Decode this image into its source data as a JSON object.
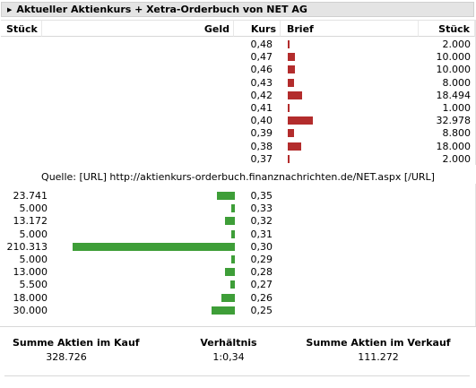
{
  "header": {
    "title": "Aktueller Aktienkurs + Xetra-Orderbuch von NET AG",
    "arrow": "▶"
  },
  "columns": {
    "stueck_left": "Stück",
    "geld": "Geld",
    "kurs": "Kurs",
    "brief": "Brief",
    "stueck_right": "Stück"
  },
  "sell_orders": [
    {
      "kurs": "0,48",
      "stueck": "2.000",
      "value": 2000
    },
    {
      "kurs": "0,47",
      "stueck": "10.000",
      "value": 10000
    },
    {
      "kurs": "0,46",
      "stueck": "10.000",
      "value": 10000
    },
    {
      "kurs": "0,43",
      "stueck": "8.000",
      "value": 8000
    },
    {
      "kurs": "0,42",
      "stueck": "18.494",
      "value": 18494
    },
    {
      "kurs": "0,41",
      "stueck": "1.000",
      "value": 1000
    },
    {
      "kurs": "0,40",
      "stueck": "32.978",
      "value": 32978
    },
    {
      "kurs": "0,39",
      "stueck": "8.800",
      "value": 8800
    },
    {
      "kurs": "0,38",
      "stueck": "18.000",
      "value": 18000
    },
    {
      "kurs": "0,37",
      "stueck": "2.000",
      "value": 2000
    }
  ],
  "source": "Quelle: [URL] http://aktienkurs-orderbuch.finanznachrichten.de/NET.aspx [/URL]",
  "buy_orders": [
    {
      "stueck": "23.741",
      "kurs": "0,35",
      "value": 23741
    },
    {
      "stueck": "5.000",
      "kurs": "0,33",
      "value": 5000
    },
    {
      "stueck": "13.172",
      "kurs": "0,32",
      "value": 13172
    },
    {
      "stueck": "5.000",
      "kurs": "0,31",
      "value": 5000
    },
    {
      "stueck": "210.313",
      "kurs": "0,30",
      "value": 210313
    },
    {
      "stueck": "5.000",
      "kurs": "0,29",
      "value": 5000
    },
    {
      "stueck": "13.000",
      "kurs": "0,28",
      "value": 13000
    },
    {
      "stueck": "5.500",
      "kurs": "0,27",
      "value": 5500
    },
    {
      "stueck": "18.000",
      "kurs": "0,26",
      "value": 18000
    },
    {
      "stueck": "30.000",
      "kurs": "0,25",
      "value": 30000
    }
  ],
  "summary": {
    "kauf_label": "Summe Aktien im Kauf",
    "kauf_value": "328.726",
    "ratio_label": "Verhältnis",
    "ratio_value": "1:0,34",
    "verkauf_label": "Summe Aktien im Verkauf",
    "verkauf_value": "111.272"
  },
  "colors": {
    "sell_bar": "#b32c2c",
    "buy_bar": "#3e9e38"
  }
}
